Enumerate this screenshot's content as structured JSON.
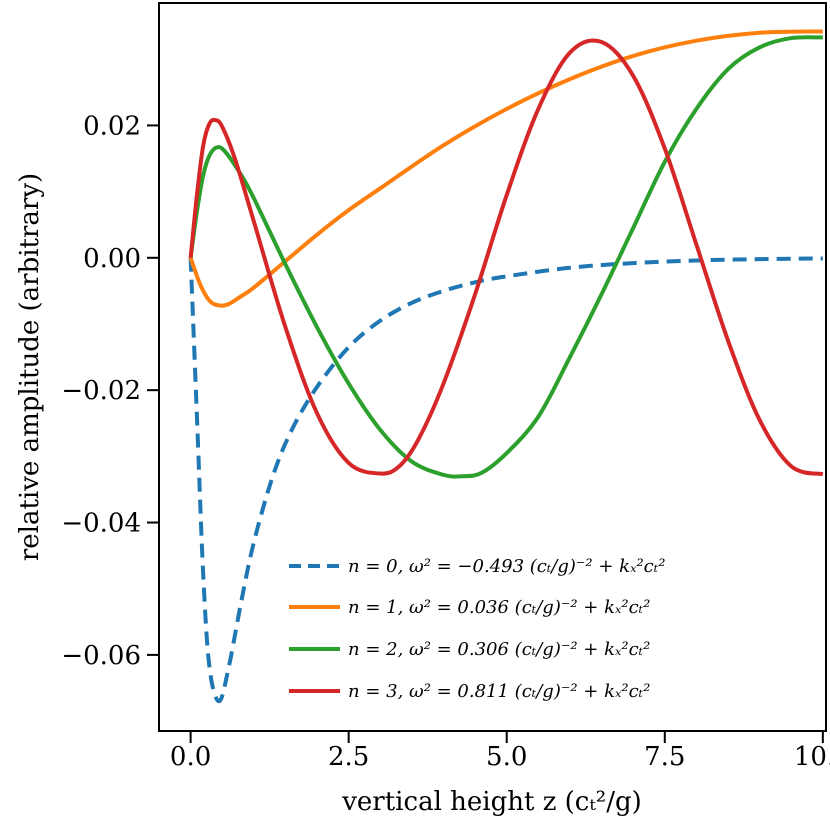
{
  "chart_data": {
    "type": "line",
    "title": "",
    "xlabel": "vertical height z (c_T^2/g)",
    "ylabel": "relative amplitude (arbitrary)",
    "xlim": [
      -0.5,
      10.05
    ],
    "ylim": [
      -0.0715,
      0.0385
    ],
    "xticks": [
      0.0,
      2.5,
      5.0,
      7.5,
      10.0
    ],
    "xtick_labels": [
      "0.0",
      "2.5",
      "5.0",
      "7.5",
      "10.0"
    ],
    "yticks": [
      0.02,
      0.0,
      -0.02,
      -0.04,
      -0.06
    ],
    "ytick_labels": [
      "0.02",
      "0.00",
      "−0.02",
      "−0.04",
      "−0.06"
    ],
    "grid": false,
    "legend_position": "lower-right",
    "series": [
      {
        "name": "n = 0, ω² = −0.493 (c_T/g)⁻² + k_x²c_T²",
        "color": "#1f77b4",
        "style": "dashed",
        "x": [
          0,
          0.1,
          0.2,
          0.3,
          0.45,
          0.6,
          0.8,
          1.0,
          1.3,
          1.6,
          2.0,
          2.5,
          3.0,
          3.5,
          4.0,
          4.5,
          5.0,
          6.0,
          7.0,
          8.0,
          9.0,
          10.0
        ],
        "y": [
          0,
          -0.024,
          -0.048,
          -0.062,
          -0.067,
          -0.062,
          -0.052,
          -0.043,
          -0.033,
          -0.026,
          -0.0195,
          -0.0135,
          -0.0095,
          -0.0068,
          -0.005,
          -0.0037,
          -0.0028,
          -0.0015,
          -0.0008,
          -0.0004,
          -0.0002,
          -0.0001
        ]
      },
      {
        "name": "n = 1, ω² = 0.036 (c_T/g)⁻² + k_x²c_T²",
        "color": "#ff7f0e",
        "style": "solid",
        "x": [
          0,
          0.15,
          0.3,
          0.45,
          0.6,
          0.8,
          1.0,
          1.5,
          2.0,
          2.5,
          3.0,
          4.0,
          5.0,
          6.0,
          7.0,
          8.0,
          9.0,
          10.0
        ],
        "y": [
          0,
          -0.004,
          -0.0065,
          -0.0072,
          -0.007,
          -0.0058,
          -0.0045,
          -0.0005,
          0.0035,
          0.0072,
          0.0105,
          0.017,
          0.0225,
          0.027,
          0.0305,
          0.0328,
          0.034,
          0.0342
        ]
      },
      {
        "name": "n = 2, ω² = 0.306 (c_T/g)⁻² + k_x²c_T²",
        "color": "#2ca02c",
        "style": "solid",
        "x": [
          0,
          0.1,
          0.2,
          0.3,
          0.42,
          0.55,
          0.8,
          1.0,
          1.5,
          2.0,
          2.5,
          3.0,
          3.5,
          4.0,
          4.3,
          4.6,
          5.0,
          5.5,
          6.0,
          6.5,
          7.0,
          7.5,
          8.0,
          8.5,
          9.0,
          9.5,
          10.0
        ],
        "y": [
          0,
          0.007,
          0.0125,
          0.0155,
          0.0167,
          0.016,
          0.0125,
          0.009,
          -0.001,
          -0.0105,
          -0.019,
          -0.026,
          -0.0308,
          -0.0328,
          -0.033,
          -0.0325,
          -0.0295,
          -0.024,
          -0.015,
          -0.0055,
          0.0045,
          0.0145,
          0.0225,
          0.0285,
          0.0318,
          0.0332,
          0.0333
        ]
      },
      {
        "name": "n = 3, ω² = 0.811 (c_T/g)⁻² + k_x²c_T²",
        "color": "#d62728",
        "style": "solid",
        "x": [
          0,
          0.1,
          0.2,
          0.3,
          0.4,
          0.5,
          0.7,
          1.0,
          1.5,
          2.0,
          2.5,
          3.0,
          3.3,
          3.6,
          4.0,
          4.5,
          5.0,
          5.5,
          6.0,
          6.5,
          7.0,
          7.5,
          8.0,
          8.5,
          9.0,
          9.5,
          10.0
        ],
        "y": [
          0,
          0.0095,
          0.017,
          0.0203,
          0.0208,
          0.0198,
          0.015,
          0.0055,
          -0.0105,
          -0.0235,
          -0.031,
          -0.0326,
          -0.0315,
          -0.0275,
          -0.019,
          -0.0055,
          0.0095,
          0.0225,
          0.031,
          0.0326,
          0.0275,
          0.0165,
          0.002,
          -0.0125,
          -0.0245,
          -0.0315,
          -0.0327
        ]
      }
    ]
  },
  "legend": {
    "entries": [
      {
        "label": "n = 0, ω² = −0.493 (cₜ/g)⁻² + kₓ²cₜ²"
      },
      {
        "label": "n = 1, ω² = 0.036 (cₜ/g)⁻² + kₓ²cₜ²"
      },
      {
        "label": "n = 2, ω² = 0.306 (cₜ/g)⁻² + kₓ²cₜ²"
      },
      {
        "label": "n = 3, ω² = 0.811 (cₜ/g)⁻² + kₓ²cₜ²"
      }
    ]
  },
  "axis_text": {
    "xlabel": "vertical height z (cₜ²/g)",
    "ylabel": "relative amplitude (arbitrary)"
  }
}
